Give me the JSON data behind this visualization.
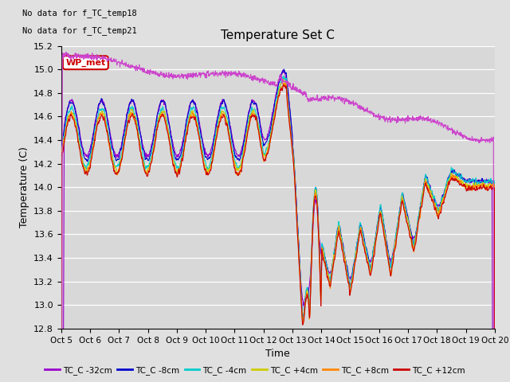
{
  "title": "Temperature Set C",
  "xlabel": "Time",
  "ylabel": "Temperature (C)",
  "ylim": [
    12.8,
    15.2
  ],
  "yticks": [
    12.8,
    13.0,
    13.2,
    13.4,
    13.6,
    13.8,
    14.0,
    14.2,
    14.4,
    14.6,
    14.8,
    15.0,
    15.2
  ],
  "xtick_labels": [
    "Oct 5",
    "Oct 6",
    "Oct 7",
    "Oct 8",
    "Oct 9",
    "Oct 10",
    "Oct 11",
    "Oct 12",
    "Oct 13",
    "Oct 14",
    "Oct 15",
    "Oct 16",
    "Oct 17",
    "Oct 18",
    "Oct 19",
    "Oct 20"
  ],
  "annotations": [
    "No data for f_TC_temp18",
    "No data for f_TC_temp21"
  ],
  "wp_met_label": "WP_met",
  "series_labels": [
    "TC_C -32cm",
    "TC_C -8cm",
    "TC_C -4cm",
    "TC_C +4cm",
    "TC_C +8cm",
    "TC_C +12cm"
  ],
  "series_colors": [
    "#9900cc",
    "#0000cc",
    "#00cccc",
    "#cccc00",
    "#ff8800",
    "#cc0000"
  ],
  "wp_met_color": "#cc44cc",
  "background_color": "#e0e0e0",
  "plot_bg_color": "#d8d8d8",
  "grid_color": "#ffffff",
  "figsize": [
    6.4,
    4.8
  ],
  "dpi": 100
}
